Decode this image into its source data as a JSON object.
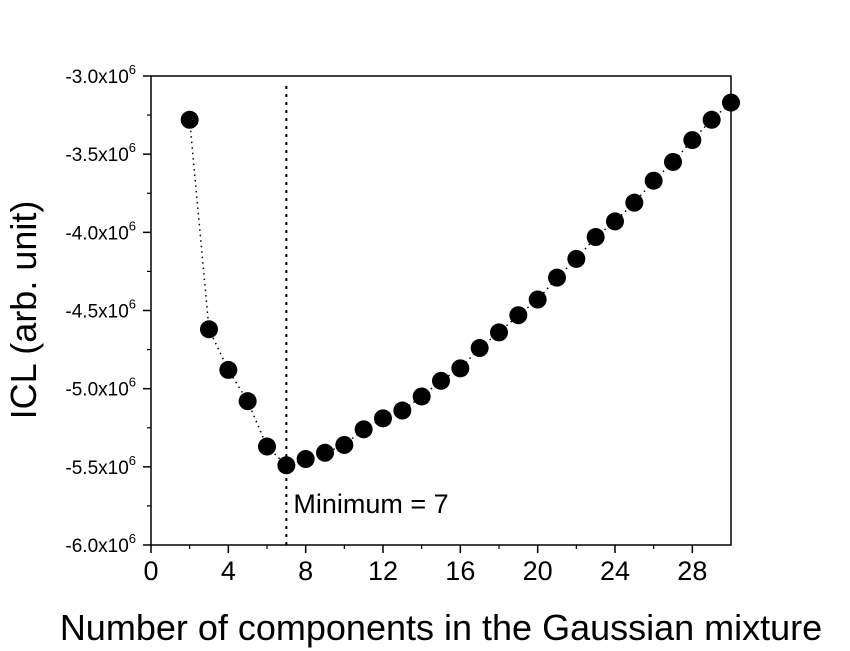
{
  "chart_data": {
    "type": "scatter",
    "xlabel": "Number of components in the Gaussian mixture",
    "ylabel": "ICL (arb. unit)",
    "xlim": [
      0,
      30
    ],
    "ylim": [
      -6000000,
      -3000000
    ],
    "xticks": [
      0,
      4,
      8,
      12,
      16,
      20,
      24,
      28
    ],
    "xtick_labels": [
      "0",
      "4",
      "8",
      "12",
      "16",
      "20",
      "24",
      "28"
    ],
    "yticks": [
      -3000000,
      -3500000,
      -4000000,
      -4500000,
      -5000000,
      -5500000,
      -6000000
    ],
    "ytick_labels": [
      {
        "base": "-3.0x10",
        "exp": "6"
      },
      {
        "base": "-3.5x10",
        "exp": "6"
      },
      {
        "base": "-4.0x10",
        "exp": "6"
      },
      {
        "base": "-4.5x10",
        "exp": "6"
      },
      {
        "base": "-5.0x10",
        "exp": "6"
      },
      {
        "base": "-5.5x10",
        "exp": "6"
      },
      {
        "base": "-6.0x10",
        "exp": "6"
      }
    ],
    "grid": false,
    "series": [
      {
        "marker": "filled-circle",
        "line": "dotted",
        "color": "#000000",
        "x": [
          2,
          3,
          4,
          5,
          6,
          7,
          8,
          9,
          10,
          11,
          12,
          13,
          14,
          15,
          16,
          17,
          18,
          19,
          20,
          21,
          22,
          23,
          24,
          25,
          26,
          27,
          28,
          29,
          30
        ],
        "y": [
          -3280000,
          -4620000,
          -4880000,
          -5080000,
          -5370000,
          -5490000,
          -5450000,
          -5410000,
          -5360000,
          -5260000,
          -5190000,
          -5140000,
          -5050000,
          -4950000,
          -4870000,
          -4740000,
          -4640000,
          -4530000,
          -4430000,
          -4290000,
          -4170000,
          -4030000,
          -3930000,
          -3810000,
          -3670000,
          -3550000,
          -3410000,
          -3280000,
          -3170000
        ]
      }
    ],
    "vline": {
      "x": 7,
      "style": "dotted"
    },
    "annotation": {
      "text": "Minimum = 7",
      "x": 7
    }
  }
}
